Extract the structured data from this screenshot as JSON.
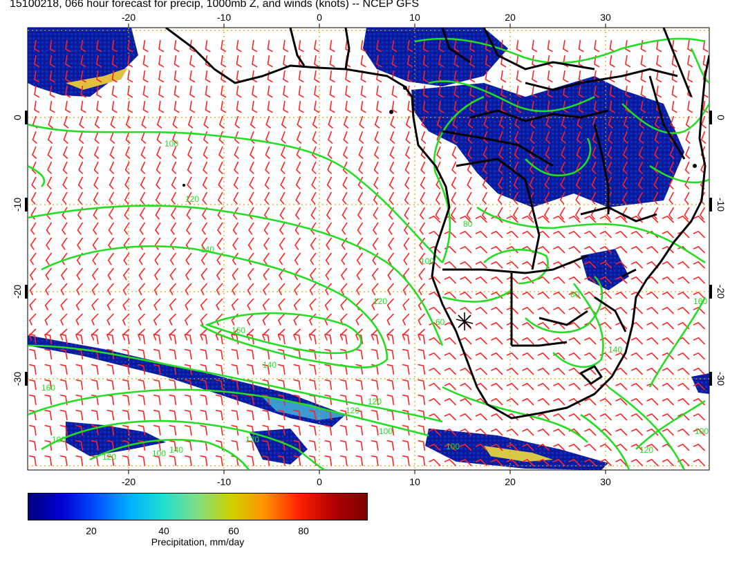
{
  "title": "15100218, 066 hour forecast for precip, 1000mb Z, and winds (knots) -- NCEP GFS",
  "map": {
    "lon_ticks": [
      "-20",
      "-10",
      "0",
      "10",
      "20",
      "30"
    ],
    "lat_ticks": [
      "0",
      "-10",
      "-20",
      "-30"
    ],
    "contour_labels": [
      "100",
      "120",
      "140",
      "160",
      "140",
      "120",
      "100",
      "80",
      "60",
      "100",
      "120",
      "140",
      "160",
      "100",
      "120",
      "160",
      "140",
      "120",
      "100",
      "120",
      "100",
      "120",
      "100",
      "80"
    ],
    "colors": {
      "contour": "#22dd22",
      "wind_barb": "#ff2020",
      "grid": "#d9a300",
      "coast": "#000000",
      "precip_low": "#0a1a9a",
      "precip_high": "#ffe040"
    }
  },
  "colorbar": {
    "ticks": [
      "20",
      "40",
      "60",
      "80"
    ],
    "label": "Precipitation, mm/day",
    "stops": [
      "#00007f",
      "#0000d0",
      "#0050ff",
      "#00b0ff",
      "#20e0d0",
      "#80e080",
      "#d0d000",
      "#ff9000",
      "#ff2000",
      "#b00000",
      "#7f0000"
    ]
  }
}
